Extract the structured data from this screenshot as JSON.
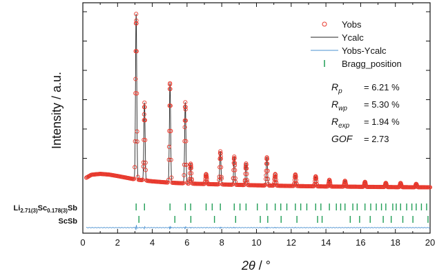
{
  "chart_data": {
    "type": "line",
    "xlabel_symbol": "2θ",
    "xlabel_unit": " / °",
    "ylabel": "Intensity / a.u.",
    "xlim": [
      0,
      20
    ],
    "x_ticks": [
      "0",
      "2",
      "4",
      "6",
      "8",
      "10",
      "12",
      "14",
      "16",
      "18",
      "20"
    ],
    "y_tick_labels": false,
    "grid": false,
    "legend_position": "top-right",
    "legend": [
      {
        "name": "Yobs",
        "marker": "open-circle",
        "color": "#e8392d"
      },
      {
        "name": "Ycalc",
        "marker": "line",
        "color": "#222222"
      },
      {
        "name": "Yobs-Ycalc",
        "marker": "line",
        "color": "#4a90d0"
      },
      {
        "name": "Bragg_position",
        "marker": "tick",
        "color": "#1f9d55"
      }
    ],
    "refinement_stats": [
      {
        "symbol": "R",
        "sub": "p",
        "value": "= 6.21 %"
      },
      {
        "symbol": "R",
        "sub": "wp",
        "value": "= 5.30 %"
      },
      {
        "symbol": "R",
        "sub": "exp",
        "value": "= 1.94 %"
      },
      {
        "symbol": "GOF",
        "sub": "",
        "value": "= 2.73"
      }
    ],
    "phases": [
      {
        "label_parts": [
          {
            "text": "Li",
            "sub": false
          },
          {
            "text": "2.71(3)",
            "sub": true
          },
          {
            "text": "Sc",
            "sub": false
          },
          {
            "text": "0.178(3)",
            "sub": true
          },
          {
            "text": "Sb",
            "sub": false
          }
        ],
        "bragg_positions": [
          3.07,
          3.55,
          5.02,
          5.9,
          6.21,
          7.1,
          7.45,
          7.92,
          8.72,
          9.05,
          9.4,
          10.05,
          10.6,
          11.08,
          11.4,
          11.75,
          12.24,
          12.55,
          12.9,
          13.41,
          13.71,
          14.2,
          14.6,
          14.85,
          15.1,
          15.55,
          15.8,
          16.25,
          16.58,
          16.9,
          17.2,
          17.45,
          17.85,
          18.05,
          18.3,
          18.65,
          18.95,
          19.2,
          19.5,
          19.8
        ]
      },
      {
        "label_parts": [
          {
            "text": "ScSb",
            "sub": false
          }
        ],
        "bragg_positions": [
          3.23,
          5.3,
          6.22,
          7.58,
          8.8,
          10.22,
          10.65,
          11.42,
          12.33,
          13.52,
          13.78,
          15.4,
          15.94,
          16.55,
          17.3,
          17.76,
          18.43,
          19.01,
          19.88
        ]
      }
    ],
    "background": {
      "x": [
        0.2,
        0.5,
        1.0,
        1.5,
        2.0,
        3.0,
        4.0,
        5.0,
        6.0,
        8.0,
        10.0,
        12.0,
        14.0,
        16.0,
        18.0,
        20.0
      ],
      "y": [
        6.0,
        7.8,
        8.3,
        7.9,
        7.0,
        5.0,
        3.8,
        3.0,
        2.5,
        1.9,
        1.4,
        1.0,
        0.7,
        0.5,
        0.3,
        0.2
      ]
    },
    "peaks": [
      {
        "pos": 3.07,
        "height": 100
      },
      {
        "pos": 3.55,
        "height": 47
      },
      {
        "pos": 5.02,
        "height": 60
      },
      {
        "pos": 5.9,
        "height": 49
      },
      {
        "pos": 6.21,
        "height": 12
      },
      {
        "pos": 7.1,
        "height": 6
      },
      {
        "pos": 7.92,
        "height": 20
      },
      {
        "pos": 8.72,
        "height": 17
      },
      {
        "pos": 9.4,
        "height": 13
      },
      {
        "pos": 10.6,
        "height": 17
      },
      {
        "pos": 11.08,
        "height": 7
      },
      {
        "pos": 12.24,
        "height": 7
      },
      {
        "pos": 13.41,
        "height": 6
      },
      {
        "pos": 14.2,
        "height": 4
      },
      {
        "pos": 15.1,
        "height": 3.5
      },
      {
        "pos": 16.25,
        "height": 3
      },
      {
        "pos": 17.45,
        "height": 2.5
      },
      {
        "pos": 18.3,
        "height": 2.5
      },
      {
        "pos": 19.2,
        "height": 2
      }
    ],
    "peak_width_sigma": 0.035,
    "y_scale_max": 105
  }
}
